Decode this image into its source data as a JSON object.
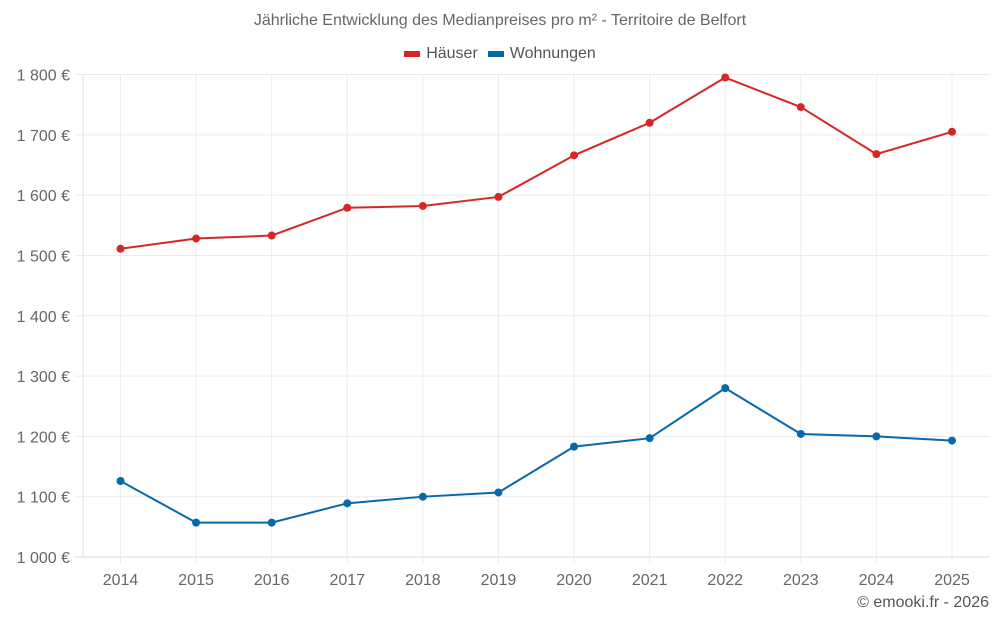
{
  "chart_data": {
    "type": "line",
    "title": "Jährliche Entwicklung des Medianpreises pro m² - Territoire de Belfort",
    "xlabel": "",
    "ylabel": "",
    "categories": [
      "2014",
      "2015",
      "2016",
      "2017",
      "2018",
      "2019",
      "2020",
      "2021",
      "2022",
      "2023",
      "2024",
      "2025"
    ],
    "ylim": [
      1000,
      1800
    ],
    "yticks": [
      1000,
      1100,
      1200,
      1300,
      1400,
      1500,
      1600,
      1700,
      1800
    ],
    "ytick_labels": [
      "1 000 €",
      "1 100 €",
      "1 200 €",
      "1 300 €",
      "1 400 €",
      "1 500 €",
      "1 600 €",
      "1 700 €",
      "1 800 €"
    ],
    "grid": true,
    "legend_position": "top-center",
    "series": [
      {
        "name": "Häuser",
        "color": "#d62728",
        "values": [
          1511,
          1528,
          1533,
          1579,
          1582,
          1597,
          1666,
          1720,
          1795,
          1746,
          1668,
          1705
        ]
      },
      {
        "name": "Wohnungen",
        "color": "#0868a8",
        "values": [
          1126,
          1057,
          1057,
          1089,
          1100,
          1107,
          1183,
          1197,
          1280,
          1204,
          1200,
          1193
        ]
      }
    ]
  },
  "credit": "© emooki.fr - 2026"
}
